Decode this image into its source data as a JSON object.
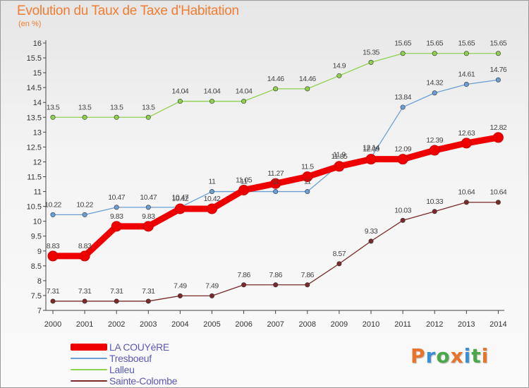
{
  "title": "Evolution du Taux de Taxe d'Habitation",
  "unit_label": "(en %)",
  "logo": {
    "letters": [
      "P",
      "r",
      "o",
      "x",
      "i",
      "t",
      "i"
    ],
    "colors": [
      "#e8732a",
      "#3a8fd4",
      "#4aa84a",
      "#e8732a",
      "#3a8fd4",
      "#4aa84a",
      "#e8732a"
    ]
  },
  "chart_data": {
    "type": "line",
    "title": "Evolution du Taux de Taxe d'Habitation",
    "ylabel": "(en %)",
    "xlabel": "",
    "x": [
      "2000",
      "2001",
      "2002",
      "2003",
      "2004",
      "2005",
      "2006",
      "2007",
      "2008",
      "2009",
      "2010",
      "2011",
      "2012",
      "2013",
      "2014"
    ],
    "ylim": [
      7,
      16
    ],
    "yticks": [
      "7",
      "7.5",
      "8",
      "8.5",
      "9",
      "9.5",
      "10",
      "10.5",
      "11",
      "11.5",
      "12",
      "12.5",
      "13",
      "13.5",
      "14",
      "14.5",
      "15",
      "15.5",
      "16"
    ],
    "grid": false,
    "legend_position": "bottom-left",
    "series": [
      {
        "name": "Lalleu",
        "color": "#8fd14f",
        "values": [
          13.5,
          13.5,
          13.5,
          13.5,
          14.04,
          14.04,
          14.04,
          14.46,
          14.46,
          14.9,
          15.35,
          15.65,
          15.65,
          15.65,
          15.65
        ],
        "labels": [
          "13.5",
          "13.5",
          "13.5",
          "13.5",
          "14.04",
          "14.04",
          "14.04",
          "14.46",
          "14.46",
          "14.9",
          "15.35",
          "15.65",
          "15.65",
          "15.65",
          "15.65"
        ]
      },
      {
        "name": "Tresboeuf",
        "color": "#6b9fd4",
        "values": [
          10.22,
          10.22,
          10.47,
          10.47,
          10.47,
          11,
          11,
          11,
          11,
          11.9,
          12.14,
          13.84,
          14.32,
          14.61,
          14.76
        ],
        "labels": [
          "10.22",
          "10.22",
          "10.47",
          "10.47",
          "10.47",
          "11",
          "11",
          "11",
          "11",
          "11.9",
          "12.14",
          "13.84",
          "14.32",
          "14.61",
          "14.76"
        ]
      },
      {
        "name": "LA COUYèRE",
        "color": "#ee0000",
        "values": [
          8.83,
          8.83,
          9.83,
          9.83,
          10.42,
          10.42,
          11.05,
          11.27,
          11.5,
          11.85,
          12.09,
          12.09,
          12.39,
          12.63,
          12.82
        ],
        "labels": [
          "8.83",
          "8.83",
          "9.83",
          "9.83",
          "10.42",
          "10.42",
          "11.05",
          "11.27",
          "11.5",
          "11.85",
          "12.09",
          "12.09",
          "12.39",
          "12.63",
          "12.82"
        ]
      },
      {
        "name": "Sainte-Colombe",
        "color": "#7a2a2a",
        "values": [
          7.31,
          7.31,
          7.31,
          7.31,
          7.49,
          7.49,
          7.86,
          7.86,
          7.86,
          8.57,
          9.33,
          10.03,
          10.33,
          10.64,
          10.64
        ],
        "labels": [
          "7.31",
          "7.31",
          "7.31",
          "7.31",
          "7.49",
          "7.49",
          "7.86",
          "7.86",
          "7.86",
          "8.57",
          "9.33",
          "10.03",
          "10.33",
          "10.64",
          "10.64"
        ]
      }
    ],
    "legend": [
      {
        "name": "LA COUYèRE",
        "label": "LA COUYèRE",
        "color": "#ee0000"
      },
      {
        "name": "Tresboeuf",
        "label": "Tresboeuf",
        "color": "#6b9fd4"
      },
      {
        "name": "Lalleu",
        "label": "Lalleu",
        "color": "#8fd14f"
      },
      {
        "name": "Sainte-Colombe",
        "label": "Sainte-Colombe",
        "color": "#7a2a2a"
      }
    ]
  }
}
